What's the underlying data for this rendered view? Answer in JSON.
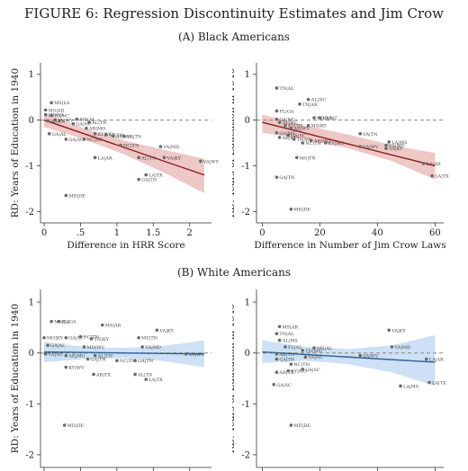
{
  "figure": {
    "label": "FIGURE 6:",
    "title": "Regression Discontinuity Estimates and Jim Crow",
    "panel_a": "(A) Black Americans",
    "panel_b": "(B) White Americans"
  },
  "colors": {
    "black_fit": "#8b1a1a",
    "black_ci": "#e8b4b4",
    "white_fit": "#2c5e93",
    "white_ci": "#bcd6f2",
    "point": "#6a6a6a",
    "zero_line": "#888888"
  },
  "chart_data": [
    {
      "id": "black-hrr",
      "type": "scatter",
      "xlabel": "Difference in HRR Score",
      "ylabel": "RD: Years of Education in 1940",
      "xlim": [
        -0.05,
        2.3
      ],
      "ylim": [
        -2.25,
        1.25
      ],
      "xticks": [
        0,
        0.5,
        1,
        1.5,
        2
      ],
      "xtick_labels": [
        "0",
        ".5",
        "1",
        "1.5",
        "2"
      ],
      "yticks": [
        1,
        0,
        -1,
        -2
      ],
      "ytick_labels": [
        "1",
        "0",
        "-1",
        "-2"
      ],
      "fit": {
        "x": [
          0,
          2.2
        ],
        "y": [
          0.0,
          -1.2
        ]
      },
      "ci": {
        "x": [
          0,
          0.55,
          1.1,
          1.65,
          2.2
        ],
        "upper": [
          0.15,
          -0.18,
          -0.45,
          -0.65,
          -0.85
        ],
        "lower": [
          -0.15,
          -0.42,
          -0.75,
          -1.15,
          -1.6
        ]
      },
      "points": [
        {
          "x": 0.1,
          "y": 0.38,
          "label": "MS|LA"
        },
        {
          "x": 0.02,
          "y": 0.22,
          "label": "MS|AR"
        },
        {
          "x": 0.02,
          "y": 0.12,
          "label": "MD|VA"
        },
        {
          "x": 0.1,
          "y": 0.1,
          "label": "VA|NC"
        },
        {
          "x": 0.05,
          "y": -0.02,
          "label": "AR|KY"
        },
        {
          "x": 0.15,
          "y": 0.0,
          "label": "KY|WV"
        },
        {
          "x": 0.45,
          "y": 0.02,
          "label": "MS|AL"
        },
        {
          "x": 0.4,
          "y": -0.08,
          "label": "GA|NC"
        },
        {
          "x": 0.62,
          "y": -0.05,
          "label": "AL|TN"
        },
        {
          "x": 0.07,
          "y": -0.3,
          "label": "GA|AL"
        },
        {
          "x": 0.58,
          "y": -0.18,
          "label": "AR|MO"
        },
        {
          "x": 0.3,
          "y": -0.42,
          "label": "GA|SC"
        },
        {
          "x": 0.55,
          "y": -0.42,
          "label": "NC|SC"
        },
        {
          "x": 0.7,
          "y": -0.3,
          "label": "KY|MO"
        },
        {
          "x": 0.85,
          "y": -0.32,
          "label": "AR|TN"
        },
        {
          "x": 0.95,
          "y": -0.35,
          "label": "AR|MS"
        },
        {
          "x": 1.1,
          "y": -0.35,
          "label": "VA|TN"
        },
        {
          "x": 1.05,
          "y": -0.55,
          "label": "NC|TN"
        },
        {
          "x": 1.6,
          "y": -0.58,
          "label": "VA|MD"
        },
        {
          "x": 0.7,
          "y": -0.82,
          "label": "LA|AR"
        },
        {
          "x": 1.3,
          "y": -0.82,
          "label": "AL|TN"
        },
        {
          "x": 1.65,
          "y": -0.82,
          "label": "VA|KY"
        },
        {
          "x": 2.15,
          "y": -0.9,
          "label": "VA|WV"
        },
        {
          "x": 1.4,
          "y": -1.2,
          "label": "LA|TX"
        },
        {
          "x": 1.3,
          "y": -1.3,
          "label": "GA|TN"
        },
        {
          "x": 0.3,
          "y": -1.65,
          "label": "MD|DE"
        }
      ]
    },
    {
      "id": "black-laws",
      "type": "scatter",
      "xlabel": "Difference in Number of Jim Crow Laws",
      "ylabel": "RD: Years of Education in 1940",
      "xlim": [
        -2,
        63
      ],
      "ylim": [
        -2.25,
        1.25
      ],
      "xticks": [
        0,
        20,
        40,
        60
      ],
      "xtick_labels": [
        "0",
        "20",
        "40",
        "60"
      ],
      "yticks": [
        1,
        0,
        -1,
        -2
      ],
      "ytick_labels": [
        "1",
        "0",
        "-1",
        "-2"
      ],
      "fit": {
        "x": [
          0,
          60
        ],
        "y": [
          -0.05,
          -1.0
        ]
      },
      "ci": {
        "x": [
          0,
          15,
          30,
          45,
          60
        ],
        "upper": [
          0.12,
          -0.12,
          -0.32,
          -0.55,
          -0.72
        ],
        "lower": [
          -0.28,
          -0.42,
          -0.62,
          -0.9,
          -1.3
        ]
      },
      "points": [
        {
          "x": 5,
          "y": 0.7,
          "label": "TN|AL"
        },
        {
          "x": 16,
          "y": 0.45,
          "label": "AL|NC"
        },
        {
          "x": 13,
          "y": 0.35,
          "label": "TN|AR"
        },
        {
          "x": 5,
          "y": 0.2,
          "label": "FL|GA"
        },
        {
          "x": 5,
          "y": 0.02,
          "label": "GA|NC"
        },
        {
          "x": 18,
          "y": 0.05,
          "label": "MS|VA"
        },
        {
          "x": 20,
          "y": 0.05,
          "label": "VA|NC"
        },
        {
          "x": 6,
          "y": -0.05,
          "label": "AL|NC"
        },
        {
          "x": 8,
          "y": -0.12,
          "label": "KY|TN"
        },
        {
          "x": 10,
          "y": -0.18,
          "label": "AR|WV"
        },
        {
          "x": 16,
          "y": -0.12,
          "label": "MS|KY"
        },
        {
          "x": 5,
          "y": -0.28,
          "label": "GA|MS"
        },
        {
          "x": 6,
          "y": -0.38,
          "label": "AR|KY"
        },
        {
          "x": 9,
          "y": -0.33,
          "label": "GA|SC"
        },
        {
          "x": 11,
          "y": -0.42,
          "label": "TN|VA"
        },
        {
          "x": 17,
          "y": -0.45,
          "label": "AR|MO"
        },
        {
          "x": 14,
          "y": -0.5,
          "label": "NC|TN"
        },
        {
          "x": 22,
          "y": -0.5,
          "label": "KY|MO"
        },
        {
          "x": 34,
          "y": -0.3,
          "label": "VA|TN"
        },
        {
          "x": 44,
          "y": -0.48,
          "label": "LA|MS"
        },
        {
          "x": 43,
          "y": -0.55,
          "label": "VA|MD"
        },
        {
          "x": 34,
          "y": -0.58,
          "label": "VA|WV"
        },
        {
          "x": 43,
          "y": -0.62,
          "label": "VA|KY"
        },
        {
          "x": 12,
          "y": -0.82,
          "label": "MS|TN"
        },
        {
          "x": 56,
          "y": -0.95,
          "label": "LA|AR"
        },
        {
          "x": 59,
          "y": -1.22,
          "label": "LA|TX"
        },
        {
          "x": 5,
          "y": -1.25,
          "label": "GA|TN"
        },
        {
          "x": 10,
          "y": -1.95,
          "label": "MD|DE"
        }
      ]
    },
    {
      "id": "white-hrr",
      "type": "scatter",
      "xlabel": "",
      "ylabel": "RD: Years of Education in 1940",
      "xlim": [
        -0.05,
        2.3
      ],
      "ylim": [
        -2.25,
        1.25
      ],
      "xticks": [
        0,
        0.5,
        1,
        1.5,
        2
      ],
      "xtick_labels": [
        "",
        "",
        "",
        "",
        ""
      ],
      "yticks": [
        1,
        0,
        -1,
        -2
      ],
      "ytick_labels": [
        "1",
        "0",
        "-1",
        "-2"
      ],
      "fit": {
        "x": [
          0,
          2.2
        ],
        "y": [
          0.02,
          -0.02
        ]
      },
      "ci": {
        "x": [
          0,
          0.55,
          1.1,
          1.65,
          2.2
        ],
        "upper": [
          0.22,
          0.12,
          0.1,
          0.14,
          0.25
        ],
        "lower": [
          -0.18,
          -0.12,
          -0.1,
          -0.16,
          -0.28
        ]
      },
      "points": [
        {
          "x": 0.1,
          "y": 0.62,
          "label": "MS|LA"
        },
        {
          "x": 0.2,
          "y": 0.62,
          "label": "AL|GA"
        },
        {
          "x": 0.8,
          "y": 0.55,
          "label": "MS|AR"
        },
        {
          "x": 0.0,
          "y": 0.3,
          "label": "MO|KY"
        },
        {
          "x": 0.3,
          "y": 0.3,
          "label": "GA|SC"
        },
        {
          "x": 0.5,
          "y": 0.32,
          "label": "NC|TN"
        },
        {
          "x": 0.65,
          "y": 0.28,
          "label": "TN|KY"
        },
        {
          "x": 1.55,
          "y": 0.45,
          "label": "VA|KY"
        },
        {
          "x": 1.3,
          "y": 0.3,
          "label": "MS|TN"
        },
        {
          "x": 0.05,
          "y": 0.15,
          "label": "GA|AL"
        },
        {
          "x": 0.55,
          "y": 0.12,
          "label": "MD|WV"
        },
        {
          "x": 1.35,
          "y": 0.12,
          "label": "VA|MD"
        },
        {
          "x": 0.02,
          "y": -0.02,
          "label": "VA|NC"
        },
        {
          "x": 0.3,
          "y": -0.05,
          "label": "AR|MO"
        },
        {
          "x": 0.7,
          "y": -0.05,
          "label": "AL|TN"
        },
        {
          "x": 0.6,
          "y": -0.12,
          "label": "GA|TN"
        },
        {
          "x": 1.0,
          "y": -0.15,
          "label": "NC|TN"
        },
        {
          "x": 1.25,
          "y": -0.15,
          "label": "GA|TN"
        },
        {
          "x": 1.95,
          "y": -0.02,
          "label": "VA|WV"
        },
        {
          "x": 0.3,
          "y": -0.28,
          "label": "KY|WV"
        },
        {
          "x": 0.68,
          "y": -0.42,
          "label": "AR|TX"
        },
        {
          "x": 1.25,
          "y": -0.42,
          "label": "AL|TN"
        },
        {
          "x": 1.4,
          "y": -0.52,
          "label": "LA|TX"
        },
        {
          "x": 0.28,
          "y": -1.42,
          "label": "MD|DE"
        }
      ]
    },
    {
      "id": "white-laws",
      "type": "scatter",
      "xlabel": "",
      "ylabel": "RD: Years of Education in 1940",
      "xlim": [
        -2,
        63
      ],
      "ylim": [
        -2.25,
        1.25
      ],
      "xticks": [
        0,
        20,
        40,
        60
      ],
      "xtick_labels": [
        "",
        "",
        "",
        ""
      ],
      "yticks": [
        1,
        0,
        -1,
        -2
      ],
      "ytick_labels": [
        "1",
        "0",
        "-1",
        "-2"
      ],
      "fit": {
        "x": [
          0,
          60
        ],
        "y": [
          0.02,
          -0.18
        ]
      },
      "ci": {
        "x": [
          0,
          15,
          30,
          45,
          60
        ],
        "upper": [
          0.25,
          0.12,
          0.08,
          0.15,
          0.35
        ],
        "lower": [
          -0.2,
          -0.15,
          -0.22,
          -0.38,
          -0.65
        ]
      },
      "points": [
        {
          "x": 6,
          "y": 0.52,
          "label": "MS|AR"
        },
        {
          "x": 5,
          "y": 0.38,
          "label": "TN|AL"
        },
        {
          "x": 44,
          "y": 0.45,
          "label": "VA|KY"
        },
        {
          "x": 6,
          "y": 0.25,
          "label": "AL|MS"
        },
        {
          "x": 8,
          "y": 0.12,
          "label": "FL|AL"
        },
        {
          "x": 14,
          "y": 0.05,
          "label": "TN|MO"
        },
        {
          "x": 18,
          "y": 0.1,
          "label": "MS|AL"
        },
        {
          "x": 45,
          "y": 0.12,
          "label": "VA|MD"
        },
        {
          "x": 5,
          "y": -0.02,
          "label": "AR|TN"
        },
        {
          "x": 5,
          "y": -0.12,
          "label": "GA|TN"
        },
        {
          "x": 15,
          "y": -0.08,
          "label": "VA|NC"
        },
        {
          "x": 34,
          "y": -0.05,
          "label": "VA|WV"
        },
        {
          "x": 57,
          "y": -0.12,
          "label": "LA|AR"
        },
        {
          "x": 10,
          "y": -0.22,
          "label": "NC|TN"
        },
        {
          "x": 5,
          "y": -0.38,
          "label": "AR|TX"
        },
        {
          "x": 9,
          "y": -0.35,
          "label": "KY|MO"
        },
        {
          "x": 14,
          "y": -0.32,
          "label": "GA|SC"
        },
        {
          "x": 4,
          "y": -0.62,
          "label": "GA|SC"
        },
        {
          "x": 48,
          "y": -0.65,
          "label": "LA|MS"
        },
        {
          "x": 58,
          "y": -0.58,
          "label": "LA|TX"
        },
        {
          "x": 10,
          "y": -1.42,
          "label": "MD|DE"
        }
      ]
    }
  ]
}
